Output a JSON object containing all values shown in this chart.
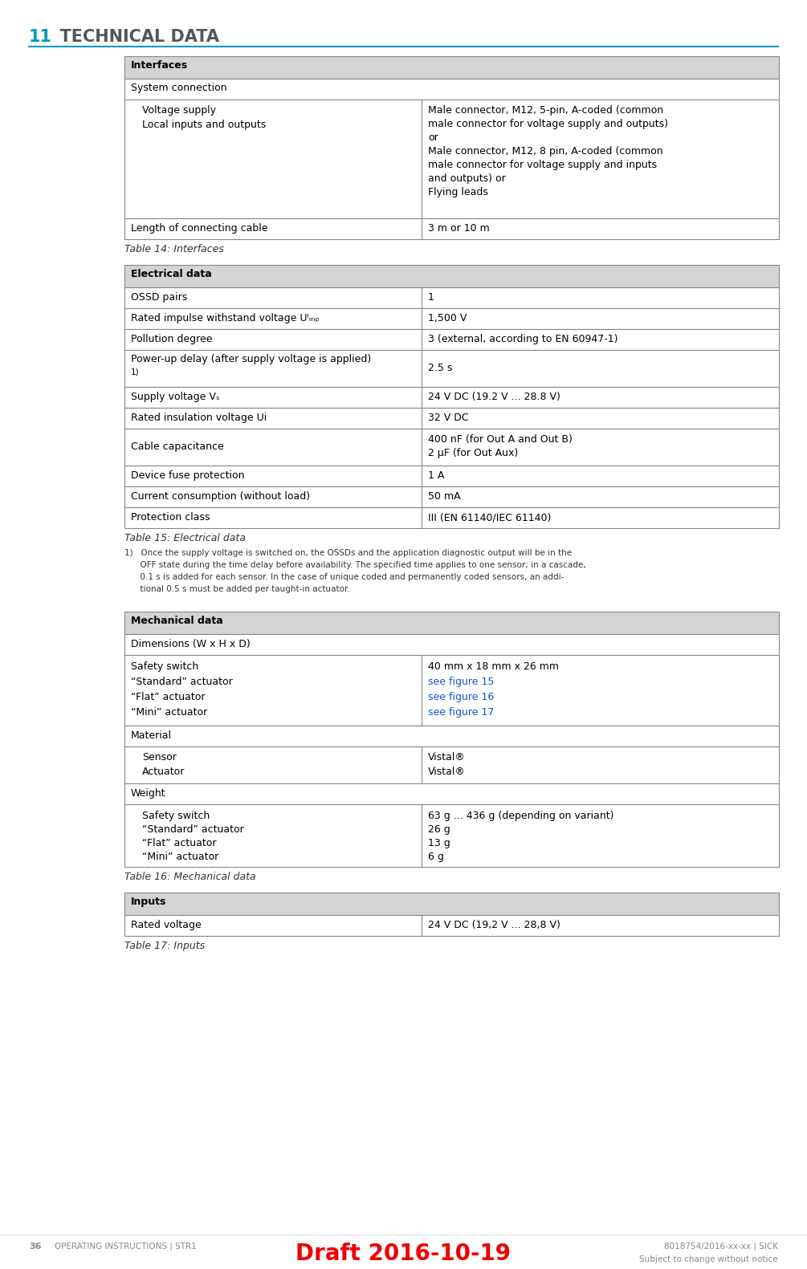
{
  "page_title_num": "11",
  "page_title_text": "TECHNICAL DATA",
  "header_color": "#009bbb",
  "header_line_color": "#009bbb",
  "bg_color": "#ffffff",
  "table_header_bg": "#d4d4d4",
  "table_border_color": "#888888",
  "draft_color": "#ee0000",
  "table14_caption": "Table 14: Interfaces",
  "table15_caption": "Table 15: Electrical data",
  "table16_caption": "Table 16: Mechanical data",
  "table17_caption": "Table 17: Inputs",
  "link_color": "#1155cc",
  "text_color": "#000000",
  "footer_text_color": "#888888",
  "title_num_color": "#009bbb",
  "title_text_color": "#555555"
}
